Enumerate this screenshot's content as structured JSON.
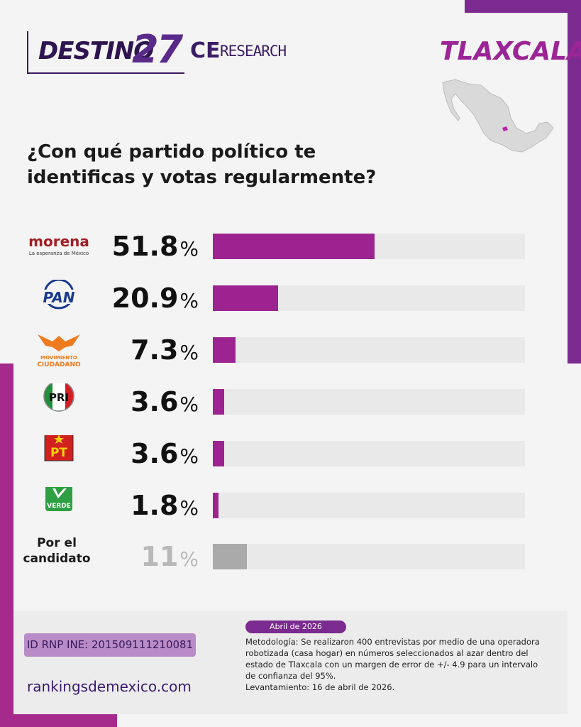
{
  "header": {
    "brand_destino": "DESTINO",
    "brand_27": "27",
    "brand_ce": "CE",
    "brand_research": "RESEARCH",
    "state": "TLAXCALA"
  },
  "question": "¿Con qué partido político te identificas y votas regularmente?",
  "logos": {
    "morena_name": "morena",
    "morena_tagline": "La esperanza de México",
    "pan": "PAN",
    "mc_line1": "MOVIMIENTO",
    "mc_line2": "CIUDADANO",
    "pri": "PRI",
    "pt": "PT",
    "verde": "VERDE"
  },
  "chart_data": {
    "type": "bar",
    "orientation": "horizontal",
    "categories": [
      "morena",
      "PAN",
      "MOVIMIENTO CIUDADANO",
      "PRI",
      "PT",
      "VERDE",
      "Por el candidato"
    ],
    "values": [
      51.8,
      20.9,
      7.3,
      3.6,
      3.6,
      1.8,
      11
    ],
    "value_labels": [
      "51.8",
      "20.9",
      "7.3",
      "3.6",
      "3.6",
      "1.8",
      "11"
    ],
    "unit": "%",
    "colors": {
      "bar": "#9c2390",
      "other_bar": "#aaaaaa",
      "track": "#e9e9e9"
    },
    "xlim": [
      0,
      100
    ],
    "grid": false,
    "legend": "none"
  },
  "other_label": "Por el candidato",
  "footer": {
    "rnp": "ID RNP INE: 201509111210081",
    "website": "rankingsdemexico.com",
    "date": "Abril de 2026",
    "methodology": "Metodología: Se realizaron 400 entrevistas por medio de una operadora robotizada (casa hogar) en números seleccionados al azar dentro del estado de Tlaxcala con un margen de error de +/- 4.9 para un intervalo de confianza del 95%.",
    "survey_date": "Levantamiento: 16 de abril de 2026."
  }
}
